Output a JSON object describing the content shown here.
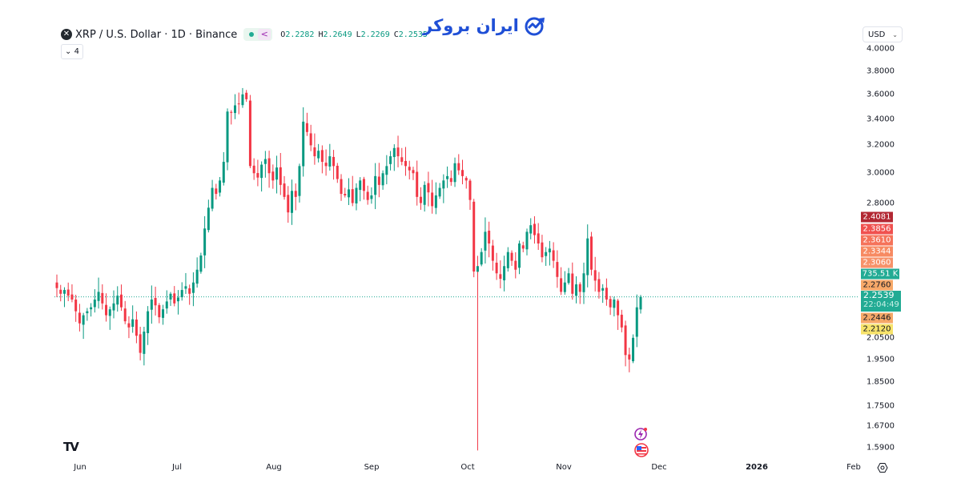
{
  "header": {
    "symbol_icon": "xrp-icon",
    "title": "XRP / U.S. Dollar · 1D · Binance",
    "ohlc": [
      {
        "key": "O",
        "value": "2.2282"
      },
      {
        "key": "H",
        "value": "2.2649"
      },
      {
        "key": "L",
        "value": "2.2269"
      },
      {
        "key": "C",
        "value": "2.2535"
      }
    ],
    "collapse_label": "⌄ 4"
  },
  "brand": {
    "text": "ایران بروکر"
  },
  "currency": {
    "selected": "USD"
  },
  "colors": {
    "up": "#089981",
    "down": "#f23645",
    "up_light": "#8ccfc1",
    "down_light": "#f7a9b0",
    "last_price_line": "#22ab94",
    "oct10_wick": "#f23645"
  },
  "chart_data": {
    "type": "candlestick",
    "title": "XRP / U.S. Dollar · 1D · Binance",
    "xlabel": "",
    "ylabel": "USD",
    "yscale": "log",
    "ylim": [
      1.55,
      4.05
    ],
    "y_ticks": [
      "4.0000",
      "3.8000",
      "3.6000",
      "3.4000",
      "3.2000",
      "3.0000",
      "2.8000",
      "2.0500",
      "1.9500",
      "1.8500",
      "1.7500",
      "1.6700",
      "1.5900"
    ],
    "x_ticks": [
      "Jun",
      "Jul",
      "Aug",
      "Sep",
      "Oct",
      "Nov",
      "Dec",
      "2026",
      "Feb"
    ],
    "last_price": 2.2539,
    "countdown": "22:04:49",
    "price_labels": [
      {
        "value": "2.4081",
        "bg": "#b22833",
        "dark": false
      },
      {
        "value": "2.3856",
        "bg": "#f0514f",
        "dark": false
      },
      {
        "value": "2.3610",
        "bg": "#f5735a",
        "dark": false
      },
      {
        "value": "2.3344",
        "bg": "#f78a62",
        "dark": false
      },
      {
        "value": "2.3060",
        "bg": "#f7926a",
        "dark": false
      },
      {
        "value": "735.51 K",
        "bg": "#22ab94",
        "dark": false
      },
      {
        "value": "2.2760",
        "bg": "#f6a868",
        "dark": true
      },
      {
        "value": "2.2446",
        "bg": "#f6a868",
        "dark": true
      },
      {
        "value": "2.2120",
        "bg": "#f7e36b",
        "dark": true
      }
    ],
    "closes": [
      2.3,
      2.27,
      2.29,
      2.26,
      2.24,
      2.18,
      2.12,
      2.16,
      2.18,
      2.2,
      2.24,
      2.28,
      2.22,
      2.16,
      2.19,
      2.22,
      2.26,
      2.2,
      2.13,
      2.1,
      2.14,
      2.06,
      1.98,
      2.08,
      2.18,
      2.24,
      2.21,
      2.15,
      2.19,
      2.23,
      2.27,
      2.22,
      2.25,
      2.29,
      2.31,
      2.27,
      2.33,
      2.4,
      2.48,
      2.64,
      2.77,
      2.9,
      2.86,
      2.95,
      3.08,
      3.46,
      3.45,
      3.51,
      3.52,
      3.6,
      3.56,
      3.05,
      3.0,
      2.97,
      3.06,
      3.1,
      3.0,
      2.95,
      3.04,
      2.92,
      2.84,
      2.74,
      2.88,
      2.84,
      3.05,
      3.38,
      3.3,
      3.2,
      3.12,
      3.16,
      3.08,
      3.05,
      3.12,
      3.05,
      2.96,
      2.86,
      2.85,
      2.89,
      2.8,
      2.9,
      2.95,
      2.88,
      2.82,
      2.85,
      2.98,
      2.92,
      3.0,
      3.05,
      3.12,
      3.18,
      3.12,
      3.08,
      3.05,
      3.02,
      3.0,
      2.84,
      2.8,
      2.92,
      2.87,
      2.78,
      2.85,
      2.9,
      2.95,
      2.98,
      2.94,
      3.07,
      3.02,
      2.98,
      2.95,
      2.82,
      2.39,
      2.42,
      2.5,
      2.62,
      2.55,
      2.45,
      2.38,
      2.35,
      2.42,
      2.5,
      2.45,
      2.4,
      2.55,
      2.52,
      2.62,
      2.66,
      2.6,
      2.55,
      2.47,
      2.5,
      2.52,
      2.45,
      2.36,
      2.28,
      2.33,
      2.38,
      2.27,
      2.32,
      2.28,
      2.38,
      2.58,
      2.4,
      2.34,
      2.28,
      2.3,
      2.24,
      2.2,
      2.24,
      2.16,
      2.1,
      1.97,
      1.95,
      2.05,
      2.2,
      2.2535
    ],
    "series_start_date": "2025-05-28",
    "annotations": [
      "Oct 10 liquidation wick to ~1.58",
      "last price line 2.2539"
    ]
  },
  "events": [
    {
      "name": "earnings-flash-icon",
      "glyph": "⚡"
    },
    {
      "name": "us-economic-event-icon",
      "glyph": "🇺🇸"
    }
  ],
  "footer": {
    "settings_icon": "gear-icon"
  }
}
